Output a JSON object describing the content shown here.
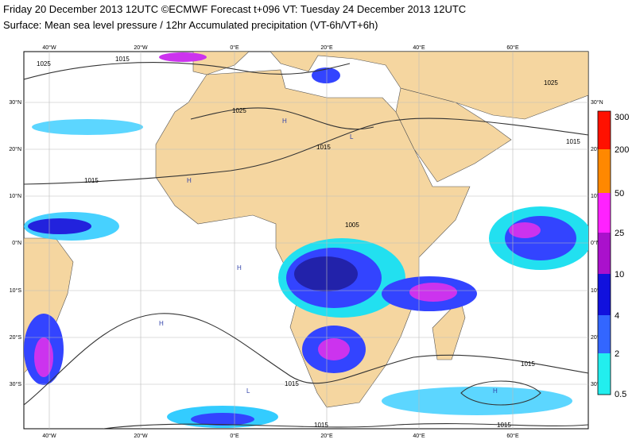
{
  "header": {
    "title": "Friday 20 December 2013 12UTC ©ECMWF Forecast t+096 VT: Tuesday 24 December 2013 12UTC",
    "subtitle": "Surface: Mean sea level pressure / 12hr Accumulated precipitation (VT-6h/VT+6h)"
  },
  "map": {
    "longitude_labels": [
      "40°W",
      "20°W",
      "0°E",
      "20°E",
      "40°E",
      "60°E"
    ],
    "latitude_labels": [
      "30°N",
      "20°N",
      "10°N",
      "0°N",
      "10°S",
      "20°S",
      "30°S"
    ]
  },
  "isobar_labels": [
    "1025",
    "1015",
    "1025",
    "1015",
    "1015",
    "1005",
    "1015",
    "1025",
    "1015",
    "1015",
    "1015",
    "1015"
  ],
  "pressure_centres": [
    "H",
    "L",
    "H",
    "H",
    "H",
    "L",
    "H"
  ],
  "colorbar": {
    "labels": [
      "300",
      "200",
      "50",
      "25",
      "10",
      "4",
      "2",
      "0.5"
    ]
  }
}
